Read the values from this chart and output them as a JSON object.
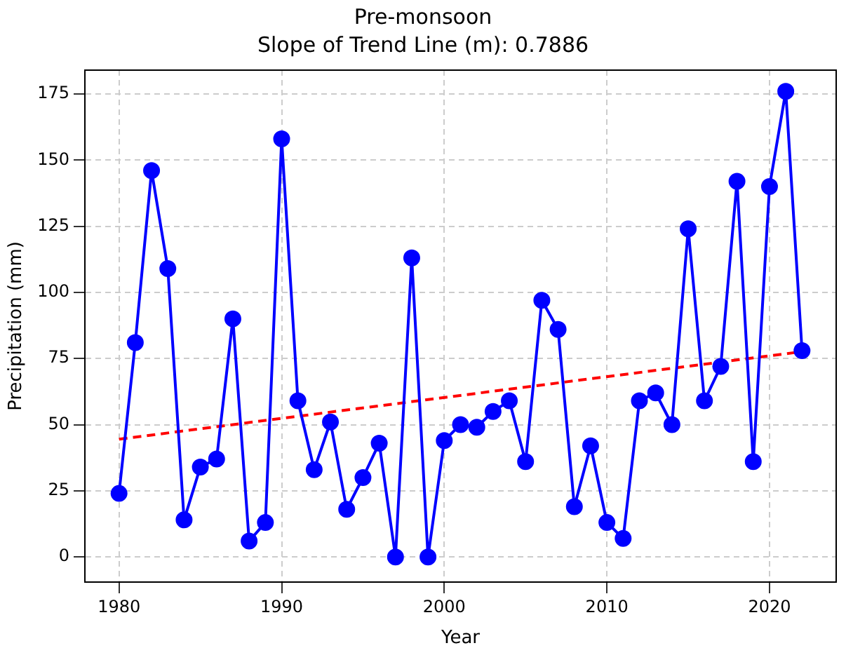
{
  "chart_data": {
    "type": "line",
    "title": "Pre-monsoon",
    "subtitle": "Slope of Trend Line (m): 0.7886",
    "xlabel": "Year",
    "ylabel": "Precipitation (mm)",
    "x": [
      1980,
      1981,
      1982,
      1983,
      1984,
      1985,
      1986,
      1987,
      1988,
      1989,
      1990,
      1991,
      1992,
      1993,
      1994,
      1995,
      1996,
      1997,
      1998,
      1999,
      2000,
      2001,
      2002,
      2003,
      2004,
      2005,
      2006,
      2007,
      2008,
      2009,
      2010,
      2011,
      2012,
      2013,
      2014,
      2015,
      2016,
      2017,
      2018,
      2019,
      2020,
      2021,
      2022
    ],
    "series": [
      {
        "color": "#0000ff",
        "marker": "circle",
        "line_style": "solid",
        "values": [
          24,
          81,
          146,
          109,
          14,
          34,
          37,
          90,
          6,
          13,
          158,
          59,
          33,
          51,
          18,
          30,
          43,
          0,
          113,
          0,
          44,
          50,
          49,
          55,
          59,
          36,
          97,
          86,
          19,
          42,
          13,
          7,
          59,
          62,
          50,
          124,
          59,
          72,
          142,
          36,
          140,
          176,
          78
        ]
      },
      {
        "color": "#ff0000",
        "marker": "none",
        "line_style": "dashed",
        "x": [
          1980,
          2022
        ],
        "values": [
          44.5,
          77.6
        ]
      }
    ],
    "xlim": [
      1977.9,
      2024.1
    ],
    "xticks": [
      1980,
      1990,
      2000,
      2010,
      2020
    ],
    "ylim": [
      -9.5,
      184
    ],
    "yticks": [
      0,
      25,
      50,
      75,
      100,
      125,
      150,
      175
    ],
    "grid": true,
    "legend": false
  }
}
